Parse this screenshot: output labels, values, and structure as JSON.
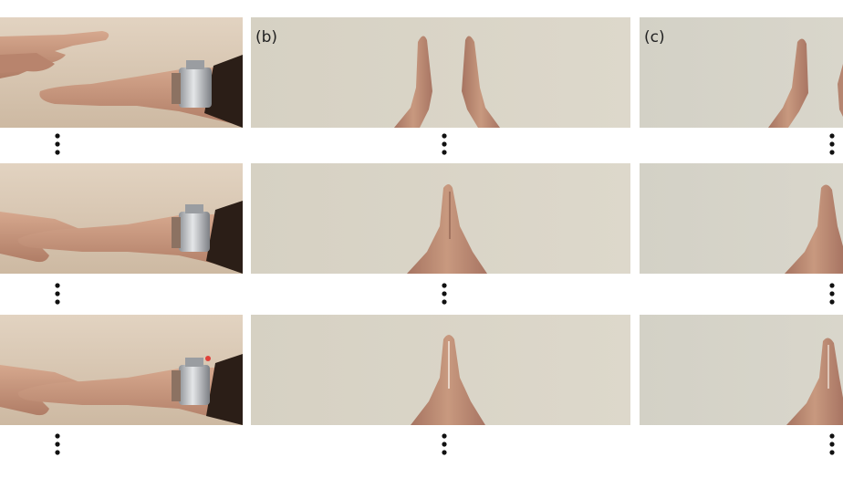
{
  "figure": {
    "panels": [
      {
        "label": "",
        "frames": 3
      },
      {
        "label": "(b)",
        "frames": 3
      },
      {
        "label": "(c)",
        "frames": 3
      }
    ],
    "continuation_symbol": "⋮",
    "colors": {
      "background": "#ffffff",
      "wall_a": "#d9c8b4",
      "wall_b": "#d8d3c5",
      "wall_c": "#d5d2c6",
      "skin": "#c99a80",
      "skin_shadow": "#a87662",
      "band_metal": "#b9bcc0",
      "band_strap": "#8c7262",
      "sleeve": "#2b1e17"
    }
  }
}
